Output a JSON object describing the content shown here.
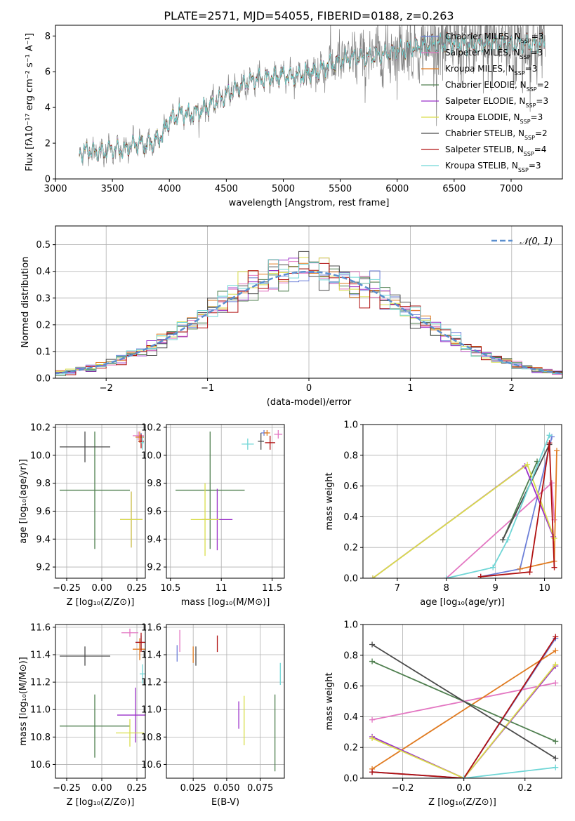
{
  "figure": {
    "title": "PLATE=2571, MJD=54055, FIBERID=0188, z=0.263"
  },
  "colors": {
    "Chabrier MILES": "#6c7fd8",
    "Salpeter MILES": "#e377c2",
    "Kroupa MILES": "#e07b21",
    "Chabrier ELODIE": "#4f7f4f",
    "Salpeter ELODIE": "#9b30c9",
    "Kroupa ELODIE": "#d9dd4a",
    "Chabrier STELIB": "#4a4a4a",
    "Salpeter STELIB": "#b01010",
    "Kroupa STELIB": "#6fd6d6",
    "data": "#808080",
    "gaussian": "#5b8fcf"
  },
  "chart_data": [
    {
      "id": "spectrum",
      "type": "line",
      "title": "PLATE=2571, MJD=54055, FIBERID=0188, z=0.263",
      "xlabel": "wavelength [Angstrom, rest frame]",
      "ylabel": "Flux [fλ10⁻¹⁷ erg cm⁻² s⁻¹ A⁻¹]",
      "xlim": [
        3000,
        7450
      ],
      "ylim": [
        0,
        8.6
      ],
      "xticks": [
        3000,
        3500,
        4000,
        4500,
        5000,
        5500,
        6000,
        6500,
        7000
      ],
      "yticks": [
        0,
        2,
        4,
        6,
        8
      ],
      "legend_position": "right",
      "legend": [
        {
          "name": "Chabrier MILES, N",
          "sub": "SSP",
          "tail": "=3"
        },
        {
          "name": "Salpeter MILES, N",
          "sub": "SSP",
          "tail": "=3"
        },
        {
          "name": "Kroupa MILES, N",
          "sub": "SSP",
          "tail": "=3"
        },
        {
          "name": "Chabrier ELODIE, N",
          "sub": "SSP",
          "tail": "=2"
        },
        {
          "name": "Salpeter ELODIE, N",
          "sub": "SSP",
          "tail": "=3"
        },
        {
          "name": "Kroupa ELODIE, N",
          "sub": "SSP",
          "tail": "=3"
        },
        {
          "name": "Chabrier STELIB, N",
          "sub": "SSP",
          "tail": "=2"
        },
        {
          "name": "Salpeter STELIB, N",
          "sub": "SSP",
          "tail": "=4"
        },
        {
          "name": "Kroupa STELIB, N",
          "sub": "SSP",
          "tail": "=3"
        }
      ],
      "continuum": [
        [
          3210,
          1.5
        ],
        [
          3300,
          1.6
        ],
        [
          3400,
          1.5
        ],
        [
          3500,
          1.7
        ],
        [
          3600,
          1.6
        ],
        [
          3700,
          2.0
        ],
        [
          3800,
          1.9
        ],
        [
          3900,
          2.2
        ],
        [
          3950,
          2.6
        ],
        [
          4000,
          3.3
        ],
        [
          4100,
          3.7
        ],
        [
          4200,
          3.6
        ],
        [
          4300,
          3.9
        ],
        [
          4400,
          4.3
        ],
        [
          4500,
          4.7
        ],
        [
          4600,
          5.1
        ],
        [
          4700,
          5.5
        ],
        [
          4800,
          5.6
        ],
        [
          4900,
          5.7
        ],
        [
          5000,
          5.8
        ],
        [
          5100,
          5.7
        ],
        [
          5200,
          5.9
        ],
        [
          5300,
          6.0
        ],
        [
          5400,
          6.4
        ],
        [
          5500,
          6.6
        ],
        [
          5600,
          6.8
        ],
        [
          5700,
          6.8
        ],
        [
          5800,
          6.9
        ],
        [
          5900,
          7.0
        ],
        [
          6000,
          7.2
        ],
        [
          6100,
          7.3
        ],
        [
          6200,
          7.4
        ],
        [
          6300,
          7.5
        ],
        [
          6400,
          7.6
        ],
        [
          6500,
          7.6
        ],
        [
          6600,
          7.5
        ],
        [
          6700,
          7.5
        ],
        [
          6800,
          7.6
        ],
        [
          6900,
          7.6
        ],
        [
          7000,
          7.5
        ],
        [
          7100,
          7.6
        ],
        [
          7200,
          7.5
        ],
        [
          7300,
          7.6
        ]
      ]
    },
    {
      "id": "residuals",
      "type": "bar",
      "xlabel": "(data-model)/error",
      "ylabel": "Normed distribution",
      "xlim": [
        -2.5,
        2.5
      ],
      "ylim": [
        0,
        0.57
      ],
      "xticks": [
        -2,
        -1,
        0,
        1,
        2
      ],
      "yticks": [
        0.0,
        0.1,
        0.2,
        0.3,
        0.4,
        0.5
      ],
      "bin_width": 0.1,
      "gaussian_label": "𝒩(0, 1)",
      "legend_position": "top-right"
    },
    {
      "id": "age-vs-Z",
      "type": "scatter",
      "xlabel": "Z [log₁₀(Z/Z⊙)]",
      "ylabel": "age  [log₁₀(age/yr)]",
      "xlim": [
        -0.33,
        0.31
      ],
      "ylim": [
        9.12,
        10.22
      ],
      "xticks": [
        -0.25,
        0.0,
        0.25
      ],
      "xticklabels": [
        "−0.25",
        "0.00",
        "0.25"
      ],
      "yticks": [
        9.2,
        9.4,
        9.6,
        9.8,
        10.0,
        10.2
      ],
      "points": [
        {
          "model": "Chabrier MILES",
          "x": 0.28,
          "y": 10.13,
          "xerr": 0.02,
          "yerr": 0.03
        },
        {
          "model": "Salpeter MILES",
          "x": 0.26,
          "y": 10.14,
          "xerr": 0.04,
          "yerr": 0.03
        },
        {
          "model": "Kroupa MILES",
          "x": 0.27,
          "y": 10.13,
          "xerr": 0.03,
          "yerr": 0.04
        },
        {
          "model": "Chabrier ELODIE",
          "x": -0.05,
          "y": 9.75,
          "xerr": 0.25,
          "yerr": 0.42
        },
        {
          "model": "Salpeter ELODIE",
          "x": 0.21,
          "y": 9.54,
          "xerr": 0.08,
          "yerr": 0.2
        },
        {
          "model": "Kroupa ELODIE",
          "x": 0.21,
          "y": 9.54,
          "xerr": 0.08,
          "yerr": 0.2
        },
        {
          "model": "Chabrier STELIB",
          "x": -0.12,
          "y": 10.06,
          "xerr": 0.18,
          "yerr": 0.11
        },
        {
          "model": "Salpeter STELIB",
          "x": 0.28,
          "y": 10.1,
          "xerr": 0.02,
          "yerr": 0.05
        },
        {
          "model": "Kroupa STELIB",
          "x": 0.29,
          "y": 10.09,
          "xerr": 0.01,
          "yerr": 0.05
        }
      ]
    },
    {
      "id": "age-vs-mass",
      "type": "scatter",
      "xlabel": "mass [log₁₀(M/M⊙)]",
      "ylabel": "",
      "xlim": [
        10.46,
        11.62
      ],
      "ylim": [
        9.12,
        10.22
      ],
      "xticks": [
        10.5,
        11.0,
        11.5
      ],
      "yticks": [
        9.2,
        9.4,
        9.6,
        9.8,
        10.0,
        10.2
      ],
      "points": [
        {
          "model": "Chabrier MILES",
          "x": 11.42,
          "y": 10.16,
          "xerr": 0.03,
          "yerr": 0.02
        },
        {
          "model": "Salpeter MILES",
          "x": 11.56,
          "y": 10.15,
          "xerr": 0.04,
          "yerr": 0.03
        },
        {
          "model": "Kroupa MILES",
          "x": 11.45,
          "y": 10.16,
          "xerr": 0.03,
          "yerr": 0.02
        },
        {
          "model": "Chabrier ELODIE",
          "x": 10.89,
          "y": 9.75,
          "xerr": 0.34,
          "yerr": 0.42
        },
        {
          "model": "Salpeter ELODIE",
          "x": 10.96,
          "y": 9.54,
          "xerr": 0.15,
          "yerr": 0.22
        },
        {
          "model": "Kroupa ELODIE",
          "x": 10.84,
          "y": 9.54,
          "xerr": 0.14,
          "yerr": 0.26
        },
        {
          "model": "Chabrier STELIB",
          "x": 11.39,
          "y": 10.1,
          "xerr": 0.03,
          "yerr": 0.06
        },
        {
          "model": "Salpeter STELIB",
          "x": 11.48,
          "y": 10.09,
          "xerr": 0.05,
          "yerr": 0.05
        },
        {
          "model": "Kroupa STELIB",
          "x": 11.26,
          "y": 10.08,
          "xerr": 0.06,
          "yerr": 0.04
        }
      ]
    },
    {
      "id": "massweight-vs-age",
      "type": "line",
      "xlabel": "age  [log₁₀(age/yr)]",
      "ylabel": "mass weight",
      "xlim": [
        6.3,
        10.35
      ],
      "ylim": [
        0,
        1
      ],
      "xticks": [
        7,
        8,
        9,
        10
      ],
      "yticks": [
        0.0,
        0.2,
        0.4,
        0.6,
        0.8,
        1.0
      ],
      "series": [
        {
          "model": "Chabrier MILES",
          "x": [
            8.7,
            9.5,
            10.15
          ],
          "y": [
            0.01,
            0.06,
            0.92
          ]
        },
        {
          "model": "Salpeter MILES",
          "x": [
            8.0,
            10.15,
            10.2
          ],
          "y": [
            0.0,
            0.62,
            0.38
          ]
        },
        {
          "model": "Kroupa MILES",
          "x": [
            9.5,
            10.2,
            10.25
          ],
          "y": [
            0.06,
            0.11,
            0.83
          ]
        },
        {
          "model": "Chabrier ELODIE",
          "x": [
            9.15,
            9.85
          ],
          "y": [
            0.25,
            0.76
          ]
        },
        {
          "model": "Salpeter ELODIE",
          "x": [
            6.5,
            9.6,
            10.18
          ],
          "y": [
            0.0,
            0.73,
            0.27
          ]
        },
        {
          "model": "Kroupa ELODIE",
          "x": [
            6.5,
            9.65,
            10.2
          ],
          "y": [
            0.0,
            0.74,
            0.26
          ]
        },
        {
          "model": "Chabrier STELIB",
          "x": [
            9.15,
            10.1
          ],
          "y": [
            0.25,
            0.87
          ]
        },
        {
          "model": "Salpeter STELIB",
          "x": [
            8.7,
            9.7,
            10.1,
            10.2
          ],
          "y": [
            0.01,
            0.04,
            0.88,
            0.07
          ]
        },
        {
          "model": "Kroupa STELIB",
          "x": [
            8.0,
            8.95,
            9.25,
            10.1
          ],
          "y": [
            0.0,
            0.07,
            0.25,
            0.93
          ]
        }
      ]
    },
    {
      "id": "mass-vs-Z",
      "type": "scatter",
      "xlabel": "Z [log₁₀(Z/Z⊙)]",
      "ylabel": "mass [log₁₀(M/M⊙)]",
      "xlim": [
        -0.33,
        0.31
      ],
      "ylim": [
        10.5,
        11.62
      ],
      "xticks": [
        -0.25,
        0.0,
        0.25
      ],
      "xticklabels": [
        "−0.25",
        "0.00",
        "0.25"
      ],
      "yticks": [
        10.6,
        10.8,
        11.0,
        11.2,
        11.4,
        11.6
      ],
      "points": [
        {
          "model": "Chabrier MILES",
          "x": 0.28,
          "y": 11.49,
          "xerr": 0.04,
          "yerr": 0.05
        },
        {
          "model": "Salpeter MILES",
          "x": 0.2,
          "y": 11.56,
          "xerr": 0.06,
          "yerr": 0.03
        },
        {
          "model": "Kroupa MILES",
          "x": 0.27,
          "y": 11.44,
          "xerr": 0.05,
          "yerr": 0.08
        },
        {
          "model": "Chabrier ELODIE",
          "x": -0.05,
          "y": 10.88,
          "xerr": 0.25,
          "yerr": 0.23
        },
        {
          "model": "Salpeter ELODIE",
          "x": 0.24,
          "y": 10.96,
          "xerr": 0.13,
          "yerr": 0.2
        },
        {
          "model": "Kroupa ELODIE",
          "x": 0.2,
          "y": 10.83,
          "xerr": 0.1,
          "yerr": 0.1
        },
        {
          "model": "Chabrier STELIB",
          "x": -0.12,
          "y": 11.39,
          "xerr": 0.18,
          "yerr": 0.07
        },
        {
          "model": "Salpeter STELIB",
          "x": 0.28,
          "y": 11.49,
          "xerr": 0.04,
          "yerr": 0.07
        },
        {
          "model": "Kroupa STELIB",
          "x": 0.29,
          "y": 11.26,
          "xerr": 0.02,
          "yerr": 0.07
        }
      ]
    },
    {
      "id": "mass-vs-EBV",
      "type": "scatter",
      "xlabel": "E(B-V)",
      "ylabel": "",
      "xlim": [
        0.005,
        0.093
      ],
      "ylim": [
        10.5,
        11.62
      ],
      "xticks": [
        0.025,
        0.05,
        0.075
      ],
      "xticklabels": [
        "0.025",
        "0.050",
        "0.075"
      ],
      "yticks": [
        10.6,
        10.8,
        11.0,
        11.2,
        11.4,
        11.6
      ],
      "points": [
        {
          "model": "Chabrier MILES",
          "x": 0.013,
          "y": 11.41,
          "yerr": 0.06
        },
        {
          "model": "Salpeter MILES",
          "x": 0.015,
          "y": 11.5,
          "yerr": 0.08
        },
        {
          "model": "Kroupa MILES",
          "x": 0.025,
          "y": 11.4,
          "yerr": 0.06
        },
        {
          "model": "Chabrier ELODIE",
          "x": 0.086,
          "y": 10.83,
          "yerr": 0.28
        },
        {
          "model": "Salpeter ELODIE",
          "x": 0.059,
          "y": 10.96,
          "yerr": 0.1
        },
        {
          "model": "Kroupa ELODIE",
          "x": 0.063,
          "y": 10.92,
          "yerr": 0.18
        },
        {
          "model": "Chabrier STELIB",
          "x": 0.027,
          "y": 11.39,
          "yerr": 0.07
        },
        {
          "model": "Salpeter STELIB",
          "x": 0.043,
          "y": 11.48,
          "yerr": 0.06
        },
        {
          "model": "Kroupa STELIB",
          "x": 0.09,
          "y": 11.26,
          "yerr": 0.08
        }
      ]
    },
    {
      "id": "massweight-vs-Z",
      "type": "line",
      "xlabel": "Z [log₁₀(Z/Z⊙)]",
      "ylabel": "mass weight",
      "xlim": [
        -0.33,
        0.32
      ],
      "ylim": [
        0,
        1
      ],
      "xticks": [
        -0.2,
        0.0,
        0.2
      ],
      "xticklabels": [
        "−0.2",
        "0.0",
        "0.2"
      ],
      "yticks": [
        0.0,
        0.2,
        0.4,
        0.6,
        0.8,
        1.0
      ],
      "series": [
        {
          "model": "Chabrier MILES",
          "x": [
            -0.3,
            0.0,
            0.3
          ],
          "y": [
            0.04,
            0.0,
            0.91
          ]
        },
        {
          "model": "Salpeter MILES",
          "x": [
            -0.3,
            0.3
          ],
          "y": [
            0.38,
            0.62
          ]
        },
        {
          "model": "Kroupa MILES",
          "x": [
            -0.3,
            0.3
          ],
          "y": [
            0.06,
            0.83
          ]
        },
        {
          "model": "Chabrier ELODIE",
          "x": [
            -0.3,
            0.3
          ],
          "y": [
            0.76,
            0.24
          ]
        },
        {
          "model": "Salpeter ELODIE",
          "x": [
            -0.3,
            0.0,
            0.3
          ],
          "y": [
            0.27,
            0.0,
            0.73
          ]
        },
        {
          "model": "Kroupa ELODIE",
          "x": [
            -0.3,
            0.0,
            0.3
          ],
          "y": [
            0.26,
            0.0,
            0.74
          ]
        },
        {
          "model": "Chabrier STELIB",
          "x": [
            -0.3,
            0.3
          ],
          "y": [
            0.87,
            0.13
          ]
        },
        {
          "model": "Salpeter STELIB",
          "x": [
            -0.3,
            0.0,
            0.3
          ],
          "y": [
            0.04,
            0.0,
            0.92
          ]
        },
        {
          "model": "Kroupa STELIB",
          "x": [
            0.0,
            0.3
          ],
          "y": [
            0.0,
            0.07
          ]
        }
      ]
    }
  ]
}
